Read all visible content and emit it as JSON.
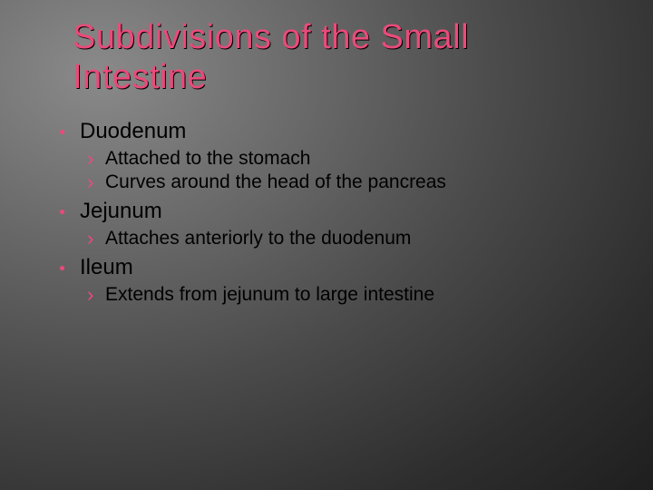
{
  "slide": {
    "title": "Subdivisions of the Small Intestine",
    "title_color": "#e94b7a",
    "title_shadow_color": "#000000",
    "title_fontsize": 38,
    "bullet_color": "#e94b7a",
    "body_font_color_l1": "#000000",
    "body_font_color_l2": "#000000",
    "l1_fontsize": 24,
    "l2_fontsize": 21,
    "background_gradient_center": "#8a8a8a",
    "background_gradient_edge": "#1a1a1a",
    "items": [
      {
        "heading": "Duodenum",
        "sub": [
          "Attached to the stomach",
          "Curves around the head of the pancreas"
        ]
      },
      {
        "heading": "Jejunum",
        "sub": [
          "Attaches anteriorly to the duodenum"
        ]
      },
      {
        "heading": "Ileum",
        "sub": [
          "Extends from jejunum to large intestine"
        ]
      }
    ]
  }
}
